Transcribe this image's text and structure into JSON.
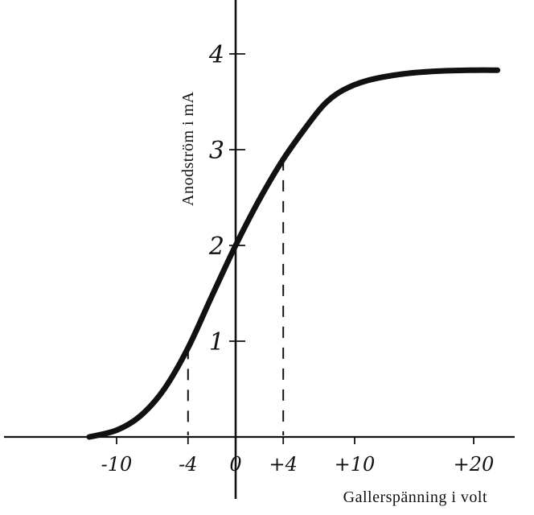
{
  "chart_data": {
    "type": "line",
    "title": "",
    "xlabel": "Gallerspänning i volt",
    "ylabel": "Anodström i mA",
    "xlim": [
      -20,
      22.5
    ],
    "ylim": [
      0,
      4.6
    ],
    "x_ticks": [
      -10,
      -4,
      0,
      4,
      10,
      20
    ],
    "x_tick_labels": [
      "-10",
      "-4",
      "0",
      "+4",
      "+10",
      "+20"
    ],
    "y_ticks": [
      1,
      2,
      3,
      4
    ],
    "y_tick_labels": [
      "1",
      "2",
      "3",
      "4"
    ],
    "grid": false,
    "series": [
      {
        "x": [
          -12.3,
          -10,
          -8,
          -6,
          -4,
          -2,
          0,
          2,
          4,
          6,
          7.5,
          9,
          11,
          14,
          17,
          20,
          22
        ],
        "y": [
          0,
          0.07,
          0.22,
          0.5,
          0.93,
          1.47,
          2.0,
          2.48,
          2.9,
          3.25,
          3.48,
          3.62,
          3.72,
          3.79,
          3.82,
          3.83,
          3.83
        ]
      }
    ],
    "reference_lines": [
      {
        "x": -4,
        "y": 0.93,
        "style": "dashed"
      },
      {
        "x": 4,
        "y": 2.9,
        "style": "dashed"
      }
    ]
  }
}
